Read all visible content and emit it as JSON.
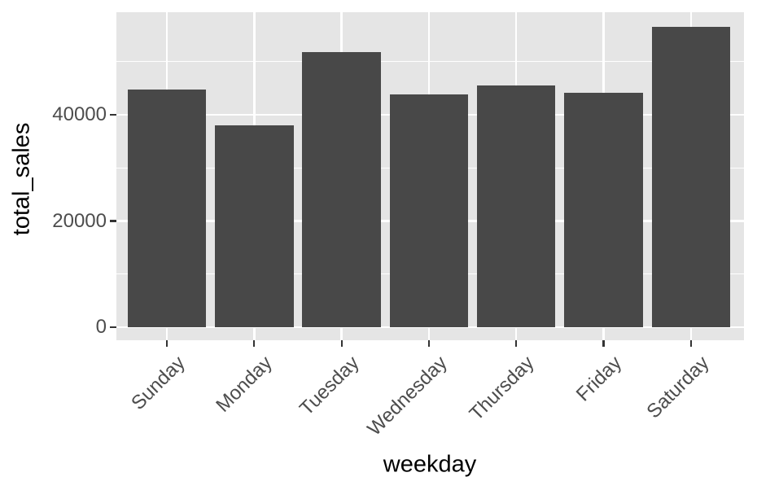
{
  "chart_data": {
    "type": "bar",
    "categories": [
      "Sunday",
      "Monday",
      "Tuesday",
      "Wednesday",
      "Thursday",
      "Friday",
      "Saturday"
    ],
    "values": [
      44700,
      38000,
      51800,
      43800,
      45500,
      44100,
      56500
    ],
    "title": "",
    "xlabel": "weekday",
    "ylabel": "total_sales",
    "ylim": [
      0,
      59300
    ],
    "yticks": [
      0,
      20000,
      40000
    ],
    "ytick_labels": [
      "0",
      "20000",
      "40000"
    ],
    "yticks_minor": [
      10000,
      30000,
      50000
    ],
    "grid": "on",
    "legend": "none",
    "colors": {
      "bar_fill": "#484848",
      "panel_background": "#E5E5E5",
      "gridline": "#FFFFFF",
      "tick_mark": "#333333",
      "tick_label_text": "#4D4D4D",
      "axis_title_text": "#000000",
      "figure_background": "#FFFFFF"
    }
  }
}
